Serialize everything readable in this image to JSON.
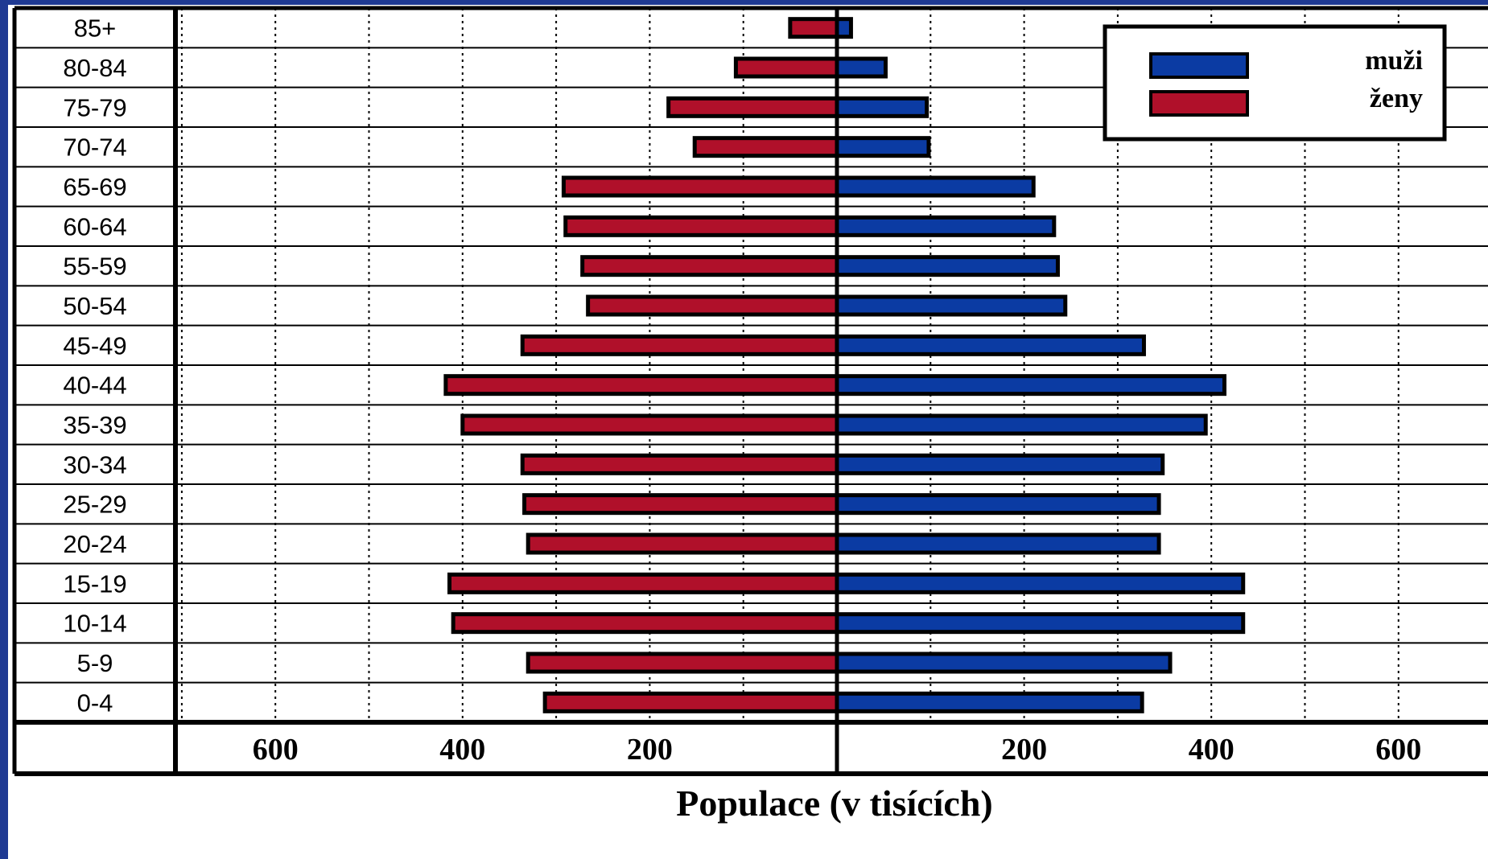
{
  "chart_data": {
    "type": "bar",
    "orientation": "horizontal-pyramid",
    "categories": [
      "85+",
      "80-84",
      "75-79",
      "70-74",
      "65-69",
      "60-64",
      "55-59",
      "50-54",
      "45-49",
      "40-44",
      "35-39",
      "30-34",
      "25-29",
      "20-24",
      "15-19",
      "10-14",
      "5-9",
      "0-4"
    ],
    "series": [
      {
        "name": "muži",
        "side": "right",
        "color": "#0b3ba3",
        "values": [
          15,
          52,
          96,
          98,
          210,
          232,
          236,
          244,
          328,
          414,
          394,
          348,
          344,
          344,
          434,
          434,
          356,
          326
        ]
      },
      {
        "name": "ženy",
        "side": "left",
        "color": "#b0102a",
        "values": [
          50,
          108,
          180,
          152,
          292,
          290,
          272,
          266,
          336,
          418,
          400,
          336,
          334,
          330,
          414,
          410,
          330,
          312
        ]
      }
    ],
    "xlabel": "Populace (v tisících)",
    "x_tick_labels": {
      "left": [
        "600",
        "400",
        "200"
      ],
      "right": [
        "200",
        "400",
        "600"
      ]
    },
    "xlim": [
      -700,
      700
    ],
    "grid": "vertical dotted",
    "legend_position": "top-right"
  }
}
